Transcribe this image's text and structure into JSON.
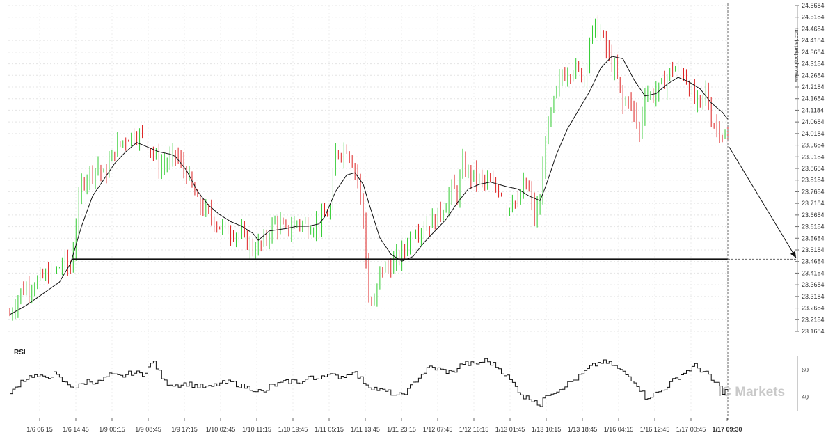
{
  "chart_data": {
    "type": "candlestick",
    "symbol_watermark": "www.autochartist.com",
    "logo_text": "IC Markets",
    "price_axis": {
      "ylim": [
        23.1684,
        24.5684
      ],
      "tick_labels": [
        "24.5684",
        "24.5184",
        "24.4684",
        "24.4184",
        "24.3684",
        "24.3184",
        "24.2684",
        "24.2184",
        "24.1684",
        "24.1184",
        "24.0684",
        "24.0184",
        "23.9684",
        "23.9184",
        "23.8684",
        "23.8184",
        "23.7684",
        "23.7184",
        "23.6684",
        "23.6184",
        "23.5684",
        "23.5184",
        "23.4684",
        "23.4184",
        "23.3684",
        "23.3184",
        "23.2684",
        "23.2184",
        "23.1684"
      ]
    },
    "x_tick_labels": [
      "1/6 06:15",
      "1/6 14:45",
      "1/9 00:15",
      "1/9 08:45",
      "1/9 17:15",
      "1/10 02:45",
      "1/10 11:15",
      "1/10 19:45",
      "1/11 05:15",
      "1/11 13:45",
      "1/11 23:15",
      "1/12 07:45",
      "1/12 16:15",
      "1/13 01:45",
      "1/13 10:15",
      "1/13 18:45",
      "1/16 04:15",
      "1/16 12:45",
      "1/17 00:45",
      "1/17 09:30"
    ],
    "price_anchors": [
      [
        0,
        23.24
      ],
      [
        4,
        23.34
      ],
      [
        8,
        23.37
      ],
      [
        12,
        23.4
      ],
      [
        16,
        23.42
      ],
      [
        20,
        23.47
      ],
      [
        22,
        23.43
      ],
      [
        24,
        23.63
      ],
      [
        26,
        23.8
      ],
      [
        28,
        23.84
      ],
      [
        32,
        23.88
      ],
      [
        34,
        23.83
      ],
      [
        38,
        23.95
      ],
      [
        42,
        24.0
      ],
      [
        46,
        24.02
      ],
      [
        50,
        23.98
      ],
      [
        54,
        23.88
      ],
      [
        58,
        23.9
      ],
      [
        60,
        23.93
      ],
      [
        62,
        23.88
      ],
      [
        64,
        23.85
      ],
      [
        68,
        23.72
      ],
      [
        72,
        23.67
      ],
      [
        76,
        23.62
      ],
      [
        80,
        23.6
      ],
      [
        84,
        23.58
      ],
      [
        88,
        23.52
      ],
      [
        92,
        23.55
      ],
      [
        96,
        23.64
      ],
      [
        100,
        23.6
      ],
      [
        104,
        23.64
      ],
      [
        108,
        23.62
      ],
      [
        112,
        23.63
      ],
      [
        116,
        23.69
      ],
      [
        118,
        23.93
      ],
      [
        122,
        23.96
      ],
      [
        124,
        23.9
      ],
      [
        126,
        23.83
      ],
      [
        128,
        23.65
      ],
      [
        130,
        23.3
      ],
      [
        132,
        23.28
      ],
      [
        134,
        23.43
      ],
      [
        138,
        23.45
      ],
      [
        142,
        23.5
      ],
      [
        146,
        23.6
      ],
      [
        150,
        23.62
      ],
      [
        154,
        23.65
      ],
      [
        158,
        23.72
      ],
      [
        160,
        23.78
      ],
      [
        162,
        23.76
      ],
      [
        164,
        23.88
      ],
      [
        166,
        23.85
      ],
      [
        170,
        23.82
      ],
      [
        174,
        23.8
      ],
      [
        178,
        23.77
      ],
      [
        180,
        23.68
      ],
      [
        182,
        23.75
      ],
      [
        184,
        23.7
      ],
      [
        186,
        23.8
      ],
      [
        188,
        23.77
      ],
      [
        190,
        23.66
      ],
      [
        192,
        23.72
      ],
      [
        194,
        24.0
      ],
      [
        196,
        24.1
      ],
      [
        198,
        24.2
      ],
      [
        200,
        24.27
      ],
      [
        204,
        24.3
      ],
      [
        208,
        24.26
      ],
      [
        210,
        24.42
      ],
      [
        212,
        24.48
      ],
      [
        214,
        24.45
      ],
      [
        216,
        24.38
      ],
      [
        218,
        24.32
      ],
      [
        220,
        24.25
      ],
      [
        222,
        24.14
      ],
      [
        224,
        24.18
      ],
      [
        226,
        24.1
      ],
      [
        228,
        24.02
      ],
      [
        230,
        24.2
      ],
      [
        232,
        24.18
      ],
      [
        236,
        24.22
      ],
      [
        240,
        24.3
      ],
      [
        244,
        24.28
      ],
      [
        246,
        24.22
      ],
      [
        248,
        24.16
      ],
      [
        250,
        24.14
      ],
      [
        252,
        24.2
      ],
      [
        254,
        24.08
      ],
      [
        256,
        24.05
      ],
      [
        258,
        24.02
      ],
      [
        260,
        23.98
      ]
    ],
    "ma_anchors": [
      [
        0,
        23.24
      ],
      [
        6,
        23.28
      ],
      [
        12,
        23.33
      ],
      [
        18,
        23.38
      ],
      [
        22,
        23.46
      ],
      [
        26,
        23.62
      ],
      [
        30,
        23.75
      ],
      [
        34,
        23.82
      ],
      [
        38,
        23.89
      ],
      [
        42,
        23.94
      ],
      [
        46,
        23.98
      ],
      [
        50,
        23.96
      ],
      [
        54,
        23.94
      ],
      [
        58,
        23.93
      ],
      [
        60,
        23.92
      ],
      [
        64,
        23.86
      ],
      [
        68,
        23.77
      ],
      [
        72,
        23.71
      ],
      [
        76,
        23.67
      ],
      [
        80,
        23.64
      ],
      [
        84,
        23.62
      ],
      [
        88,
        23.59
      ],
      [
        90,
        23.56
      ],
      [
        94,
        23.6
      ],
      [
        100,
        23.61
      ],
      [
        104,
        23.62
      ],
      [
        108,
        23.62
      ],
      [
        112,
        23.63
      ],
      [
        114,
        23.66
      ],
      [
        118,
        23.77
      ],
      [
        122,
        23.84
      ],
      [
        125,
        23.85
      ],
      [
        128,
        23.8
      ],
      [
        130,
        23.72
      ],
      [
        134,
        23.57
      ],
      [
        138,
        23.5
      ],
      [
        142,
        23.47
      ],
      [
        146,
        23.49
      ],
      [
        150,
        23.55
      ],
      [
        154,
        23.6
      ],
      [
        158,
        23.65
      ],
      [
        162,
        23.72
      ],
      [
        166,
        23.78
      ],
      [
        170,
        23.8
      ],
      [
        174,
        23.81
      ],
      [
        180,
        23.79
      ],
      [
        184,
        23.78
      ],
      [
        188,
        23.75
      ],
      [
        192,
        23.73
      ],
      [
        194,
        23.79
      ],
      [
        198,
        23.93
      ],
      [
        202,
        24.04
      ],
      [
        206,
        24.12
      ],
      [
        210,
        24.2
      ],
      [
        214,
        24.3
      ],
      [
        218,
        24.35
      ],
      [
        222,
        24.34
      ],
      [
        226,
        24.25
      ],
      [
        230,
        24.18
      ],
      [
        234,
        24.19
      ],
      [
        238,
        24.23
      ],
      [
        242,
        24.26
      ],
      [
        246,
        24.24
      ],
      [
        250,
        24.21
      ],
      [
        254,
        24.15
      ],
      [
        258,
        24.11
      ],
      [
        260,
        24.08
      ]
    ],
    "n_candles": 261,
    "support_line": {
      "value": 23.4784
    },
    "projection": {
      "from_value": 23.96,
      "to_value": 23.4784
    },
    "rsi": {
      "title": "RSI",
      "tick_labels": [
        "60",
        "40"
      ],
      "ylim": [
        30,
        70
      ],
      "anchors": [
        [
          0,
          42
        ],
        [
          4,
          52
        ],
        [
          8,
          56
        ],
        [
          12,
          54
        ],
        [
          16,
          57
        ],
        [
          20,
          50
        ],
        [
          24,
          47
        ],
        [
          28,
          52
        ],
        [
          32,
          51
        ],
        [
          36,
          56
        ],
        [
          40,
          55
        ],
        [
          44,
          58
        ],
        [
          48,
          57
        ],
        [
          50,
          62
        ],
        [
          52,
          66
        ],
        [
          54,
          58
        ],
        [
          56,
          51
        ],
        [
          60,
          49
        ],
        [
          64,
          50
        ],
        [
          68,
          48
        ],
        [
          72,
          47
        ],
        [
          76,
          50
        ],
        [
          80,
          51
        ],
        [
          84,
          48
        ],
        [
          88,
          46
        ],
        [
          92,
          43
        ],
        [
          94,
          48
        ],
        [
          98,
          50
        ],
        [
          102,
          52
        ],
        [
          106,
          51
        ],
        [
          108,
          55
        ],
        [
          110,
          53
        ],
        [
          114,
          57
        ],
        [
          118,
          55
        ],
        [
          122,
          56
        ],
        [
          124,
          60
        ],
        [
          126,
          55
        ],
        [
          130,
          48
        ],
        [
          134,
          45
        ],
        [
          138,
          43
        ],
        [
          140,
          40
        ],
        [
          144,
          45
        ],
        [
          148,
          55
        ],
        [
          152,
          62
        ],
        [
          156,
          60
        ],
        [
          160,
          58
        ],
        [
          164,
          65
        ],
        [
          168,
          64
        ],
        [
          172,
          67
        ],
        [
          176,
          63
        ],
        [
          180,
          55
        ],
        [
          184,
          45
        ],
        [
          186,
          40
        ],
        [
          190,
          38
        ],
        [
          192,
          33
        ],
        [
          194,
          42
        ],
        [
          198,
          45
        ],
        [
          202,
          50
        ],
        [
          206,
          55
        ],
        [
          210,
          62
        ],
        [
          214,
          66
        ],
        [
          218,
          64
        ],
        [
          222,
          58
        ],
        [
          226,
          52
        ],
        [
          228,
          46
        ],
        [
          230,
          40
        ],
        [
          232,
          41
        ],
        [
          236,
          45
        ],
        [
          240,
          52
        ],
        [
          244,
          58
        ],
        [
          248,
          63
        ],
        [
          250,
          60
        ],
        [
          252,
          58
        ],
        [
          254,
          52
        ],
        [
          256,
          50
        ],
        [
          258,
          44
        ],
        [
          260,
          45
        ]
      ]
    }
  }
}
